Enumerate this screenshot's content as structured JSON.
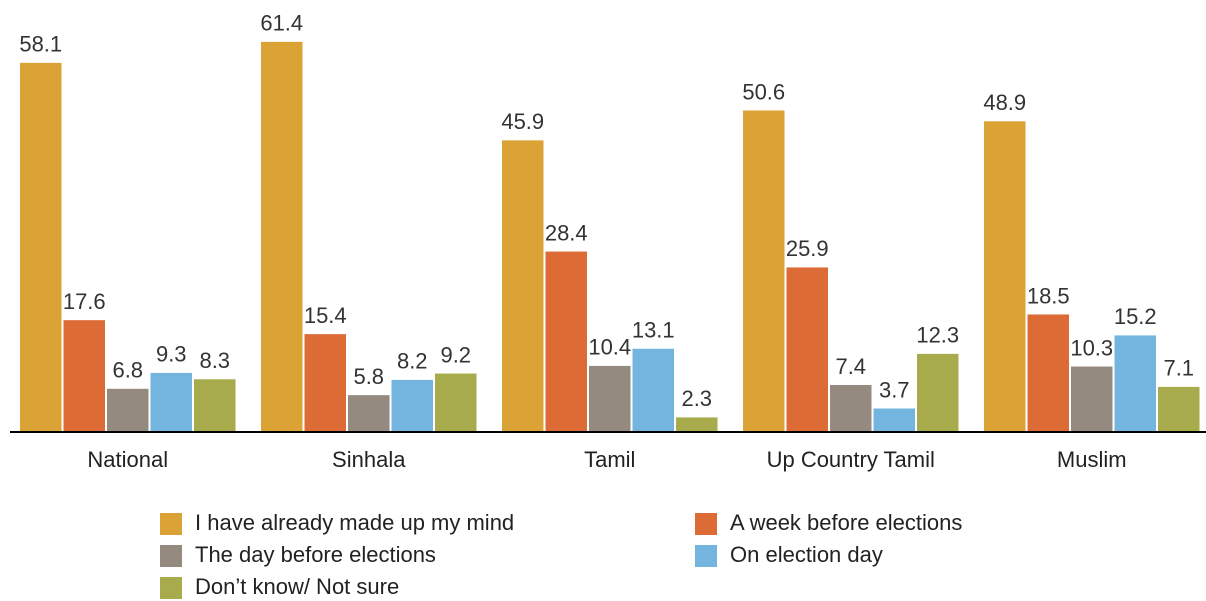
{
  "chart_data": {
    "type": "bar",
    "categories": [
      "National",
      "Sinhala",
      "Tamil",
      "Up Country Tamil",
      "Muslim"
    ],
    "series": [
      {
        "name": "I have already made up my mind",
        "color": "#dba236",
        "values": [
          58.1,
          61.4,
          45.9,
          50.6,
          48.9
        ]
      },
      {
        "name": "A week before elections",
        "color": "#dc6b35",
        "values": [
          17.6,
          15.4,
          28.4,
          25.9,
          18.5
        ]
      },
      {
        "name": "The day before elections",
        "color": "#958a80",
        "values": [
          6.8,
          5.8,
          10.4,
          7.4,
          10.3
        ]
      },
      {
        "name": "On election day",
        "color": "#74b5e0",
        "values": [
          9.3,
          8.2,
          13.1,
          3.7,
          15.2
        ]
      },
      {
        "name": "Don’t know/ Not sure",
        "color": "#a8ab4b",
        "values": [
          8.3,
          9.2,
          2.3,
          12.3,
          7.1
        ]
      }
    ],
    "ylim": [
      0,
      65
    ]
  }
}
